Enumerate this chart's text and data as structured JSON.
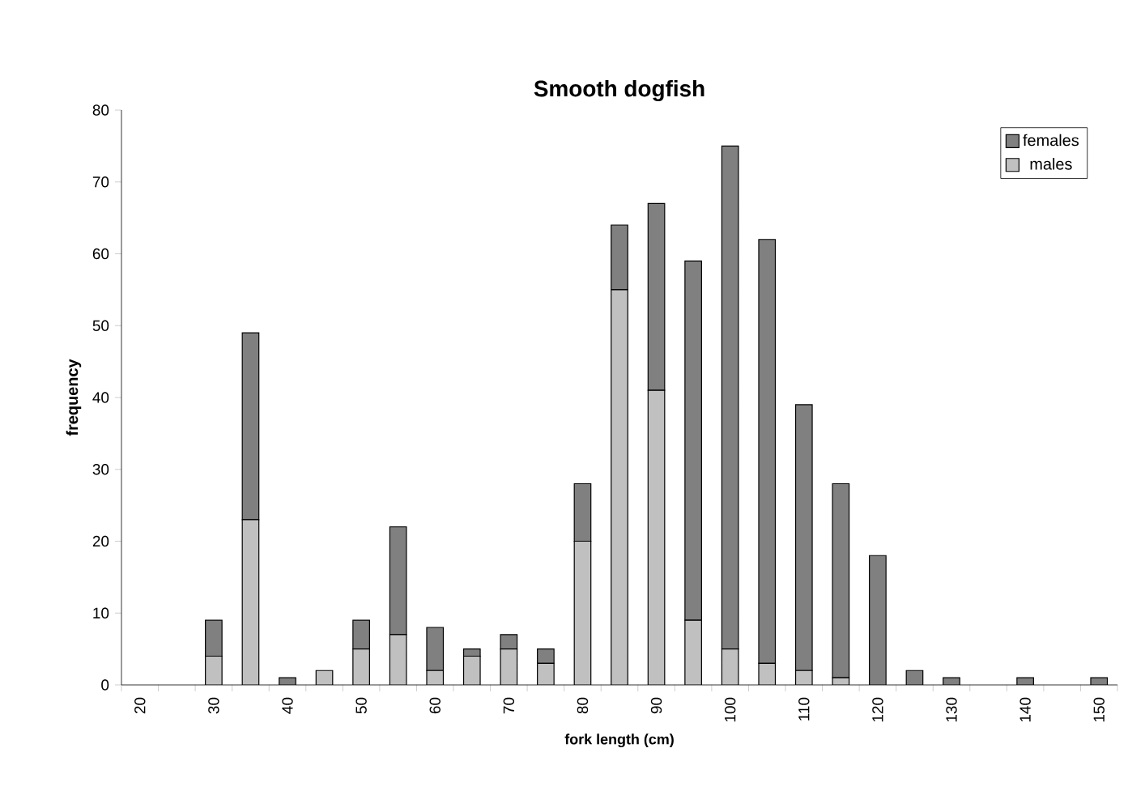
{
  "chart_data": {
    "type": "bar",
    "title": "Smooth dogfish",
    "xlabel": "fork length (cm)",
    "ylabel": "frequency",
    "categories": [
      "20",
      null,
      "30",
      null,
      "40",
      null,
      "50",
      null,
      "60",
      null,
      "70",
      null,
      "80",
      null,
      "90",
      null,
      "100",
      null,
      "110",
      null,
      "120",
      null,
      "130",
      null,
      "140",
      null,
      "150"
    ],
    "stacked": true,
    "series": [
      {
        "name": "males",
        "color": "#c0c0c0",
        "values": [
          0,
          0,
          4,
          23,
          0,
          2,
          5,
          7,
          2,
          4,
          5,
          3,
          20,
          55,
          41,
          9,
          5,
          3,
          2,
          1,
          0,
          0,
          0,
          0,
          0,
          0,
          0
        ]
      },
      {
        "name": "females",
        "color": "#808080",
        "values": [
          0,
          0,
          5,
          26,
          1,
          0,
          4,
          15,
          6,
          1,
          2,
          2,
          8,
          9,
          26,
          50,
          70,
          59,
          37,
          27,
          18,
          2,
          1,
          0,
          1,
          0,
          1
        ]
      }
    ],
    "ylim": [
      0,
      80
    ],
    "yticks": [
      0,
      10,
      20,
      30,
      40,
      50,
      60,
      70,
      80
    ],
    "grid": false,
    "legend": "top right"
  }
}
